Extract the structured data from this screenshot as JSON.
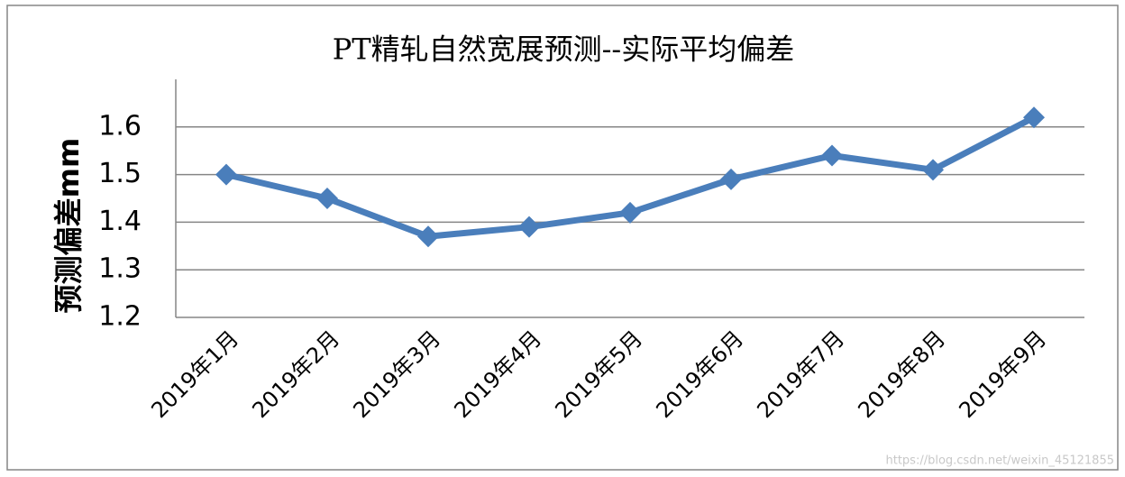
{
  "chart_data": {
    "type": "line",
    "title": "PT精轧自然宽展预测--实际平均偏差",
    "y_label": "预测偏差mm",
    "categories": [
      "2019年1月",
      "2019年2月",
      "2019年3月",
      "2019年4月",
      "2019年5月",
      "2019年6月",
      "2019年7月",
      "2019年8月",
      "2019年9月"
    ],
    "series": [
      {
        "name": "预测偏差",
        "color": "#4a7ebb",
        "values": [
          1.5,
          1.45,
          1.37,
          1.39,
          1.42,
          1.49,
          1.54,
          1.51,
          1.62
        ]
      }
    ],
    "ylim": [
      1.2,
      1.7
    ],
    "yticks": [
      1.2,
      1.3,
      1.4,
      1.5,
      1.6
    ],
    "grid": true,
    "legend": false
  },
  "watermark": "https://blog.csdn.net/weixin_45121855"
}
